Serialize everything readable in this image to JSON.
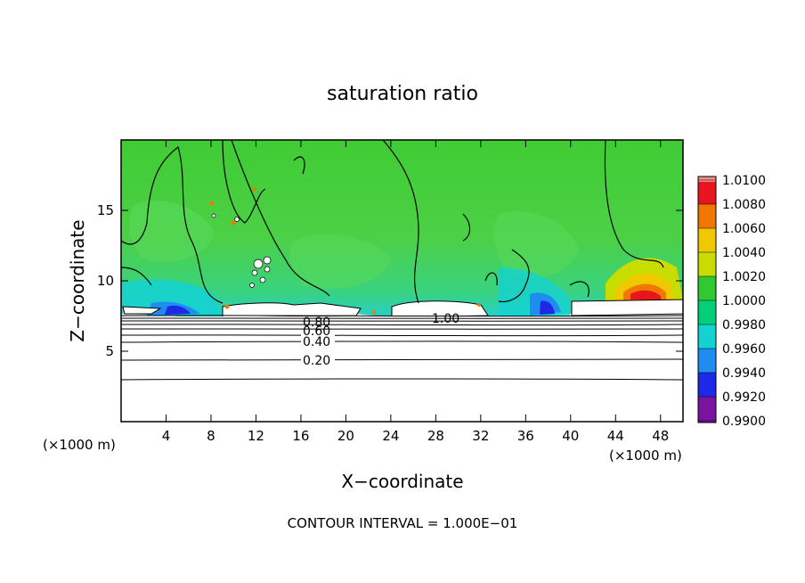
{
  "chart_data": {
    "type": "heatmap",
    "title": "saturation ratio",
    "xlabel": "X−coordinate",
    "ylabel": "Z−coordinate",
    "x_unit_left": "(×1000 m)",
    "x_unit_right": "(×1000 m)",
    "footer": "CONTOUR INTERVAL = 1.000E−01",
    "xlim": [
      0,
      50
    ],
    "ylim": [
      0,
      20
    ],
    "x_ticks": [
      4,
      8,
      12,
      16,
      20,
      24,
      28,
      32,
      36,
      40,
      44,
      48
    ],
    "y_ticks": [
      5,
      10,
      15
    ],
    "contour_labels": [
      {
        "text": "0.20",
        "x": 17.5,
        "z": 4.2
      },
      {
        "text": "0.40",
        "x": 17.5,
        "z": 5.5
      },
      {
        "text": "0.60",
        "x": 17.5,
        "z": 6.4
      },
      {
        "text": "0.80",
        "x": 17.5,
        "z": 7.2
      },
      {
        "text": "1.00",
        "x": 29.0,
        "z": 7.5
      }
    ],
    "contour_levels_z": [
      3.0,
      4.4,
      5.5,
      6.0,
      6.4,
      6.8,
      7.1,
      7.4,
      7.7
    ],
    "colorbar": {
      "labels": [
        "1.0100",
        "1.0080",
        "1.0060",
        "1.0040",
        "1.0020",
        "1.0000",
        "0.9980",
        "0.9960",
        "0.9940",
        "0.9920",
        "0.9900"
      ],
      "colors": [
        "#f08c8c",
        "#e8141e",
        "#f07800",
        "#f0c800",
        "#c8dc00",
        "#32c832",
        "#00d07a",
        "#14d2d2",
        "#1e8cf0",
        "#1e28e6",
        "#7814a0"
      ]
    },
    "colors": {
      "field": "#3ccc3c",
      "field_light": "#5ad86a",
      "dry": "#1e28e6",
      "moist": "#e8321e",
      "cloud_free": "#ffffff"
    }
  }
}
